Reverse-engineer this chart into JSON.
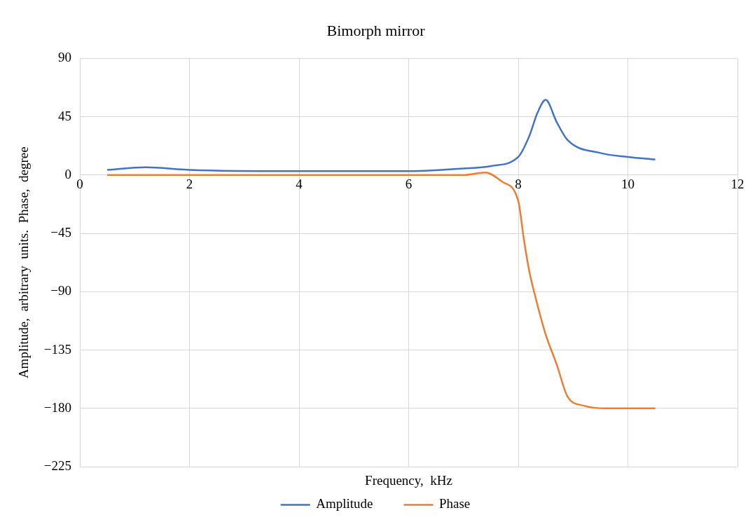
{
  "chart_data": {
    "type": "line",
    "title": "Bimorph mirror",
    "xlabel": "Frequency,  kHz",
    "ylabel": "Amplitude,  arbitrary  units.  Phase,  degree",
    "xlim": [
      0,
      12
    ],
    "xticks": [
      0,
      2,
      4,
      6,
      8,
      10,
      12
    ],
    "ylim": [
      -225,
      90
    ],
    "yticks": [
      -225,
      -180,
      -135,
      -90,
      -45,
      0,
      45,
      90
    ],
    "grid": true,
    "legend": "bottom",
    "marker": "none",
    "line_style": "solid",
    "series": [
      {
        "name": "Amplitude",
        "color": "#4472c4",
        "x": [
          0.5,
          1.2,
          2,
          4,
          6,
          7,
          7.5,
          8,
          8.2,
          8.35,
          8.5,
          8.7,
          8.9,
          9.5,
          10,
          10.5
        ],
        "values": [
          4,
          6,
          4,
          3,
          3,
          5,
          7,
          14,
          30,
          48,
          58,
          41,
          27,
          17,
          14,
          12
        ]
      },
      {
        "name": "Phase",
        "color": "#ed7d31",
        "x": [
          0.5,
          2,
          4,
          6,
          7,
          7.4,
          7.7,
          8,
          8.1,
          8.2,
          8.3,
          8.5,
          8.7,
          8.9,
          9.2,
          9.6,
          10,
          10.5
        ],
        "values": [
          0,
          0,
          0,
          0,
          0,
          2,
          -5,
          -20,
          -49,
          -74,
          -92,
          -123,
          -146,
          -171,
          -178,
          -180,
          -180,
          -180
        ]
      }
    ]
  }
}
